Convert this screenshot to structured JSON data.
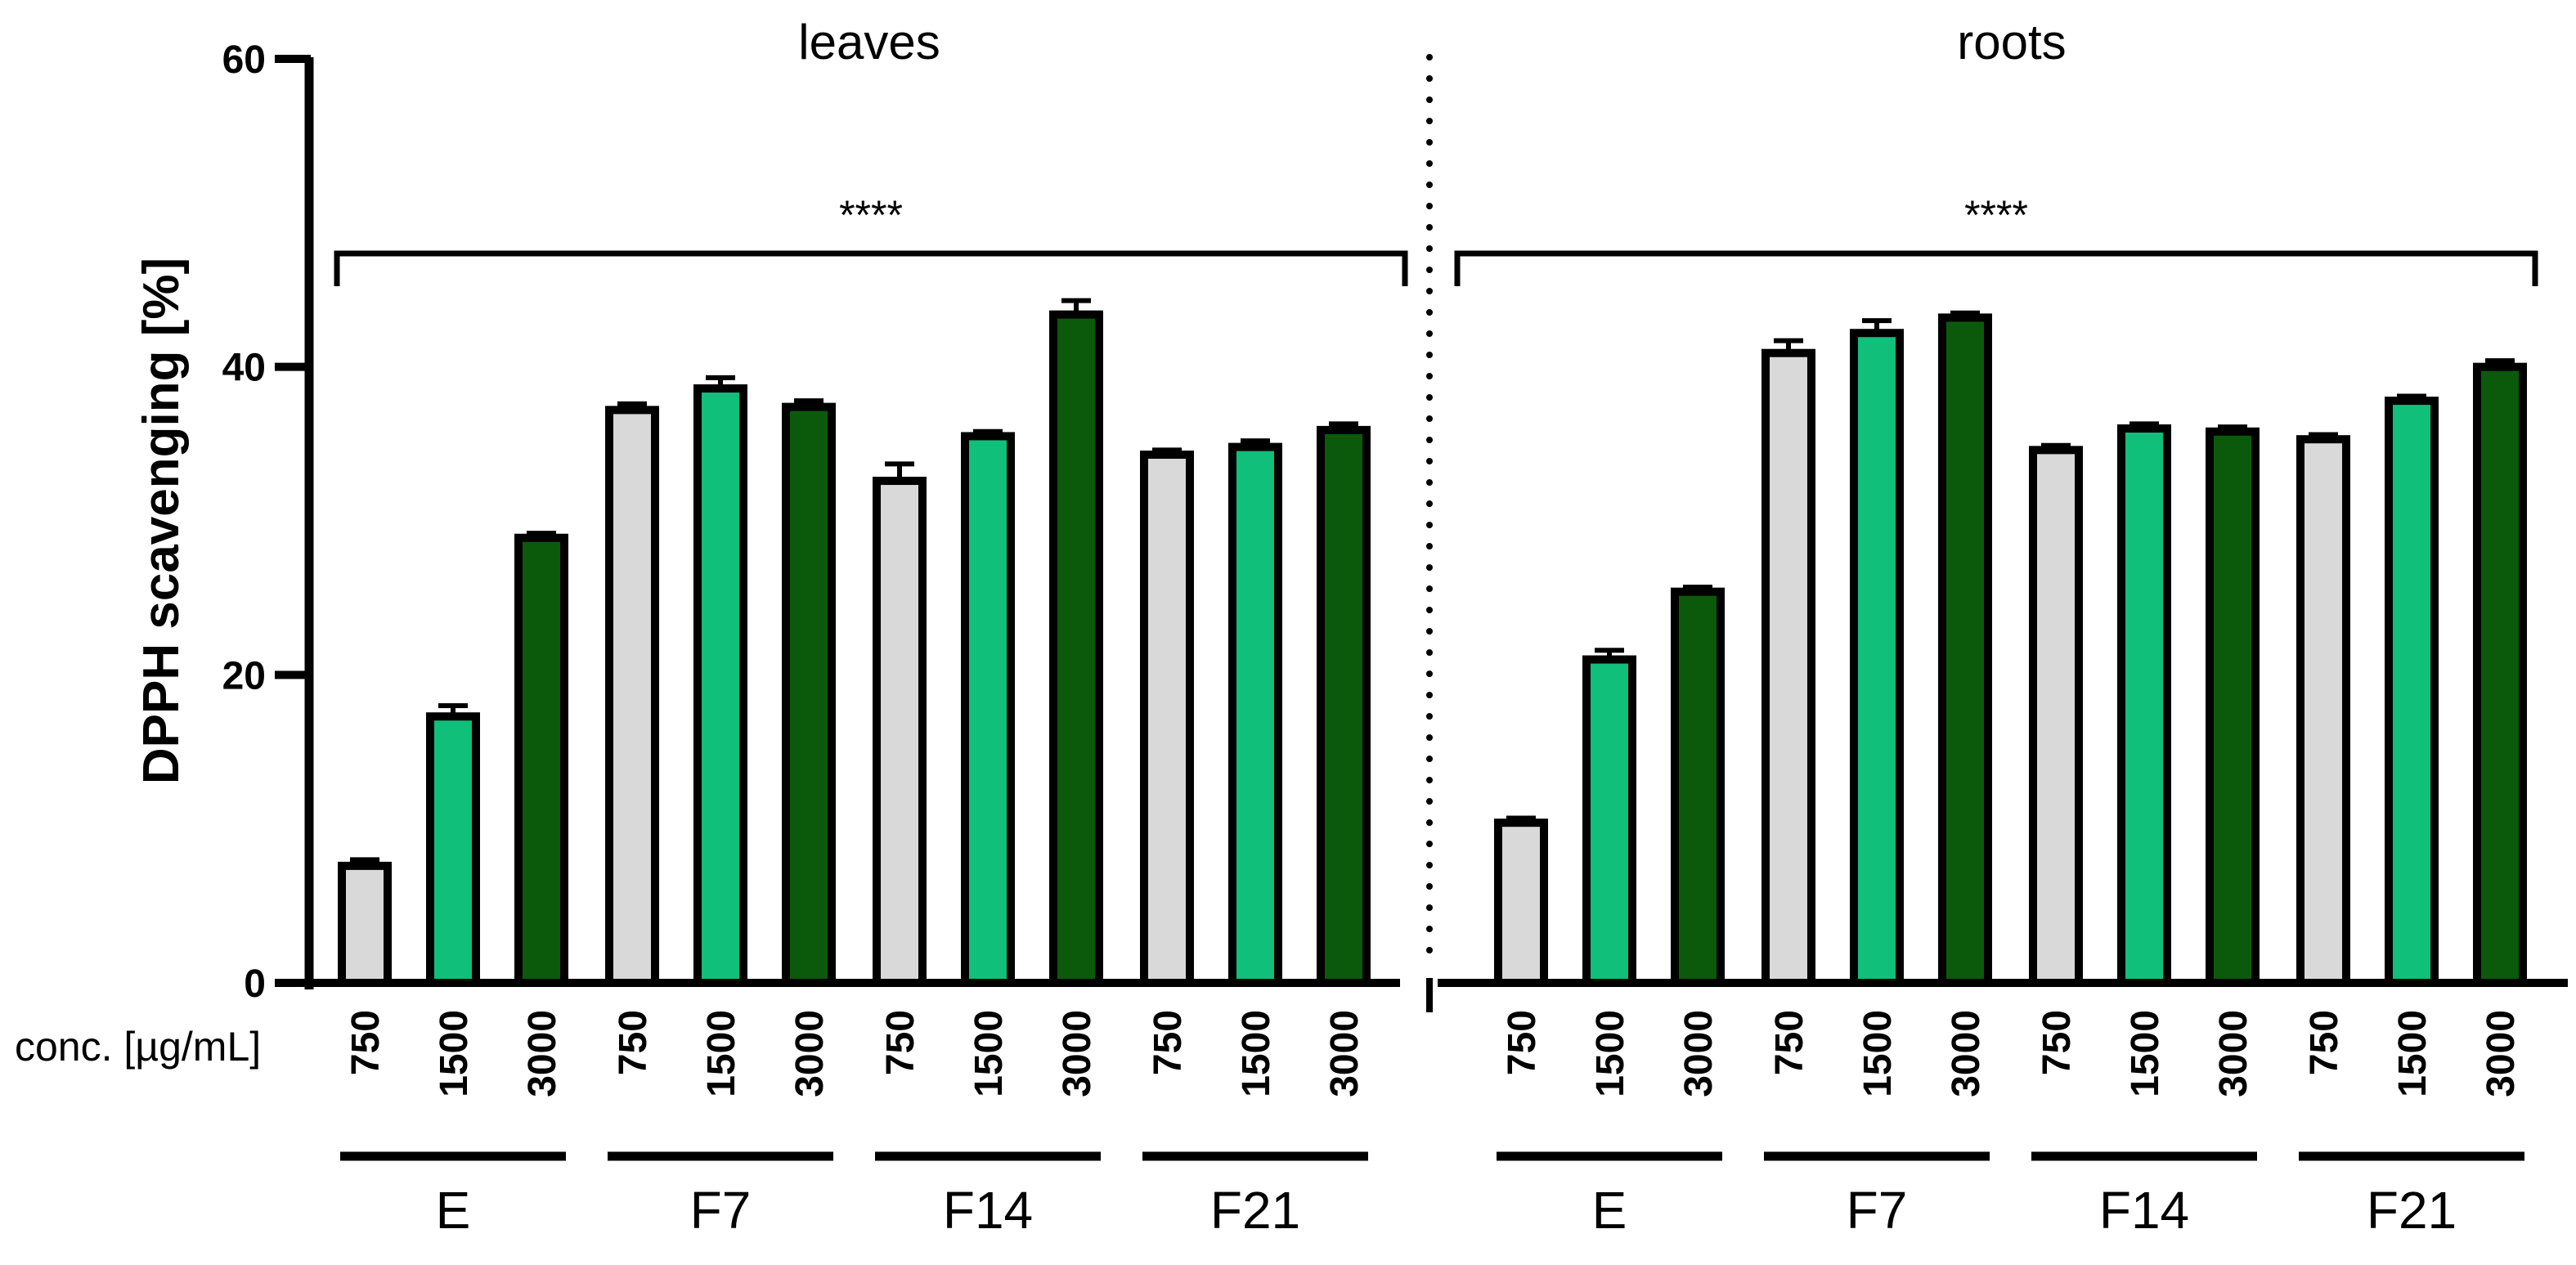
{
  "chart_data": {
    "type": "bar",
    "ylabel": "DPPH scavenging [%]",
    "ylim": [
      0,
      60
    ],
    "yticks": [
      "0",
      "20",
      "40",
      "60"
    ],
    "x_row_label": "conc. [µg/mL]",
    "concentrations": [
      "750",
      "1500",
      "3000"
    ],
    "groups": [
      "E",
      "F7",
      "F14",
      "F21"
    ],
    "colors": {
      "750": "#d9d9d9",
      "1500": "#0fbf7a",
      "3000": "#0b5a0b"
    },
    "significance": "****",
    "panels": [
      {
        "title": "leaves",
        "values": [
          [
            7.6,
            17.3,
            28.9
          ],
          [
            37.2,
            38.6,
            37.4
          ],
          [
            32.6,
            35.5,
            43.4
          ],
          [
            34.3,
            34.8,
            35.9
          ]
        ],
        "errors": [
          [
            0.4,
            0.7,
            0.3
          ],
          [
            0.4,
            0.7,
            0.4
          ],
          [
            1.1,
            0.3,
            0.9
          ],
          [
            0.3,
            0.4,
            0.4
          ]
        ]
      },
      {
        "title": "roots",
        "values": [
          [
            10.4,
            21.0,
            25.4
          ],
          [
            40.9,
            42.2,
            43.2
          ],
          [
            34.6,
            36.0,
            35.8
          ],
          [
            35.3,
            37.8,
            40.0
          ]
        ],
        "errors": [
          [
            0.3,
            0.6,
            0.3
          ],
          [
            0.8,
            0.8,
            0.3
          ],
          [
            0.3,
            0.3,
            0.3
          ],
          [
            0.3,
            0.3,
            0.4
          ]
        ]
      }
    ]
  }
}
